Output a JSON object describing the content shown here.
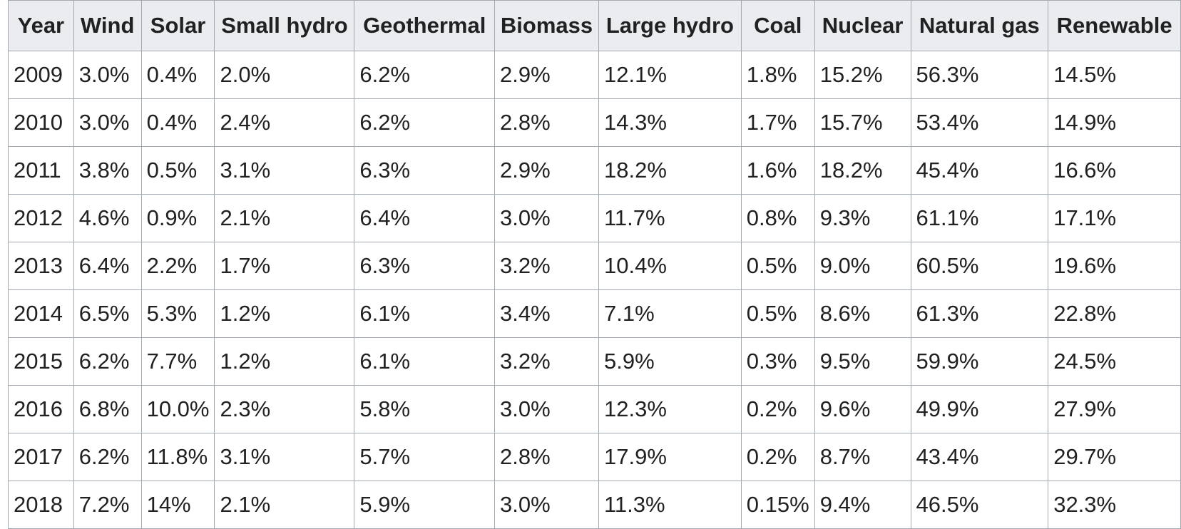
{
  "table": {
    "header": [
      "Year",
      "Wind",
      "Solar",
      "Small hydro",
      "Geothermal",
      "Biomass",
      "Large hydro",
      "Coal",
      "Nuclear",
      "Natural gas",
      "Renewable"
    ],
    "rows": [
      [
        "2009",
        "3.0%",
        "0.4%",
        "2.0%",
        "6.2%",
        "2.9%",
        "12.1%",
        "1.8%",
        "15.2%",
        "56.3%",
        "14.5%"
      ],
      [
        "2010",
        "3.0%",
        "0.4%",
        "2.4%",
        "6.2%",
        "2.8%",
        "14.3%",
        "1.7%",
        "15.7%",
        "53.4%",
        "14.9%"
      ],
      [
        "2011",
        "3.8%",
        "0.5%",
        "3.1%",
        "6.3%",
        "2.9%",
        "18.2%",
        "1.6%",
        "18.2%",
        "45.4%",
        "16.6%"
      ],
      [
        "2012",
        "4.6%",
        "0.9%",
        "2.1%",
        "6.4%",
        "3.0%",
        "11.7%",
        "0.8%",
        "9.3%",
        "61.1%",
        "17.1%"
      ],
      [
        "2013",
        "6.4%",
        "2.2%",
        "1.7%",
        "6.3%",
        "3.2%",
        "10.4%",
        "0.5%",
        "9.0%",
        "60.5%",
        "19.6%"
      ],
      [
        "2014",
        "6.5%",
        "5.3%",
        "1.2%",
        "6.1%",
        "3.4%",
        "7.1%",
        "0.5%",
        "8.6%",
        "61.3%",
        "22.8%"
      ],
      [
        "2015",
        "6.2%",
        "7.7%",
        "1.2%",
        "6.1%",
        "3.2%",
        "5.9%",
        "0.3%",
        "9.5%",
        "59.9%",
        "24.5%"
      ],
      [
        "2016",
        "6.8%",
        "10.0%",
        "2.3%",
        "5.8%",
        "3.0%",
        "12.3%",
        "0.2%",
        "9.6%",
        "49.9%",
        "27.9%"
      ],
      [
        "2017",
        "6.2%",
        "11.8%",
        "3.1%",
        "5.7%",
        "2.8%",
        "17.9%",
        "0.2%",
        "8.7%",
        "43.4%",
        "29.7%"
      ],
      [
        "2018",
        "7.2%",
        "14%",
        "2.1%",
        "5.9%",
        "3.0%",
        "11.3%",
        "0.15%",
        "9.4%",
        "46.5%",
        "32.3%"
      ]
    ]
  }
}
